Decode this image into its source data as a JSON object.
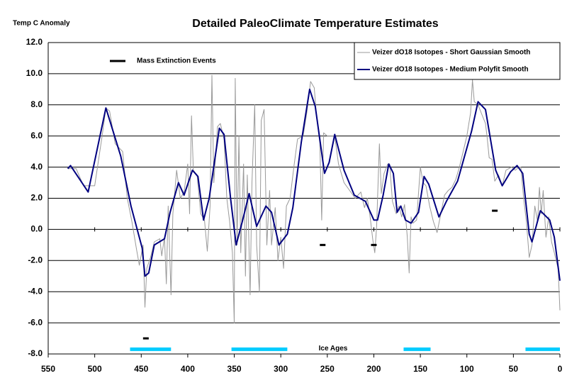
{
  "chart_data": {
    "type": "line",
    "title": "Detailed PaleoClimate Temperature Estimates",
    "y_label": "Temp C Anomaly",
    "xlim": [
      550,
      0
    ],
    "xticks": [
      550,
      500,
      450,
      400,
      350,
      300,
      250,
      200,
      150,
      100,
      50,
      0
    ],
    "ylim": [
      -8,
      12
    ],
    "yticks": [
      {
        "value": -8,
        "label": "-8.0"
      },
      {
        "value": -6,
        "label": "-6.0"
      },
      {
        "value": -4,
        "label": "-4.0"
      },
      {
        "value": -2,
        "label": "-2.0"
      },
      {
        "value": 0,
        "label": "0.0"
      },
      {
        "value": 2,
        "label": "2.0"
      },
      {
        "value": 4,
        "label": "4.0"
      },
      {
        "value": 6,
        "label": "6.0"
      },
      {
        "value": 8,
        "label": "8.0"
      },
      {
        "value": 10,
        "label": "10.0"
      },
      {
        "value": 12,
        "label": "12.0"
      }
    ],
    "grid": true,
    "legend": "upper right",
    "series": [
      {
        "name": "Veizer dO18 Isotopes - Short Gaussian Smooth",
        "color": "#999999",
        "style": "line",
        "width": 1,
        "x": [
          528,
          520,
          512,
          500,
          492,
          488,
          484,
          478,
          470,
          465,
          460,
          455,
          452,
          448,
          446,
          444,
          440,
          436,
          430,
          428,
          425,
          423,
          421,
          418,
          416,
          412,
          408,
          404,
          400,
          398,
          396,
          394,
          390,
          386,
          382,
          379,
          376,
          374,
          372,
          368,
          365,
          361,
          358,
          355,
          352,
          350,
          349,
          347,
          345,
          343,
          340,
          338,
          336,
          333,
          331,
          328,
          326,
          323,
          321,
          318,
          315,
          312,
          310,
          306,
          303,
          300,
          297,
          294,
          290,
          286,
          282,
          276,
          272,
          268,
          264,
          262,
          258,
          256,
          254,
          250,
          246,
          242,
          238,
          232,
          226,
          220,
          214,
          210,
          207,
          204,
          201,
          199,
          197,
          194,
          192,
          189,
          185,
          183,
          180,
          176,
          173,
          170,
          167,
          164,
          162,
          160,
          158,
          154,
          150,
          147,
          144,
          140,
          136,
          132,
          128,
          124,
          120,
          116,
          112,
          108,
          104,
          100,
          96,
          94,
          92,
          88,
          84,
          80,
          78,
          76,
          73,
          70,
          66,
          62,
          58,
          52,
          48,
          44,
          42,
          39,
          36,
          33,
          30,
          27,
          24,
          22,
          20,
          18,
          15,
          12,
          9,
          6,
          4,
          2,
          1,
          0
        ],
        "values": [
          3.9,
          3.9,
          2.8,
          2.8,
          6,
          7.8,
          7.6,
          5.5,
          5.0,
          2.0,
          0.5,
          -1.3,
          -2.3,
          -1.0,
          -5.0,
          -2.5,
          -1.8,
          -0.8,
          -0.6,
          -1.7,
          -0.5,
          -3.5,
          1.5,
          -4.2,
          1.0,
          3.8,
          2.0,
          2.4,
          4.2,
          1.0,
          7.3,
          3.8,
          3.5,
          1.0,
          0.6,
          -1.4,
          1.5,
          9.9,
          3.0,
          6.6,
          6.8,
          5.8,
          2.0,
          0.5,
          -1.5,
          -6.0,
          9.7,
          -1.0,
          6.0,
          -1.5,
          4.2,
          -3.0,
          3.5,
          -4.2,
          3.0,
          8.0,
          -1.0,
          -4.0,
          7.0,
          7.7,
          -1.0,
          2.5,
          -1.0,
          1.4,
          -2.0,
          -0.5,
          -2.5,
          1.5,
          2.0,
          4.0,
          5.8,
          6.0,
          7.5,
          9.5,
          9.1,
          7.5,
          5.5,
          0.6,
          6.2,
          6.0,
          6.0,
          6.0,
          4.2,
          3.0,
          2.5,
          2.0,
          2.4,
          1.4,
          2.0,
          0.8,
          -0.7,
          -1.5,
          0.2,
          5.5,
          2.3,
          3.6,
          4.2,
          4.2,
          1.8,
          1.0,
          1.5,
          0.8,
          1.6,
          -0.5,
          -2.8,
          0.8,
          0.4,
          0.6,
          4.0,
          3.0,
          2.8,
          1.5,
          0.5,
          -0.2,
          1.0,
          2.2,
          2.5,
          2.7,
          3.2,
          4.0,
          5.0,
          6.0,
          7.5,
          9.6,
          8.2,
          8.0,
          7.4,
          6.8,
          5.8,
          4.6,
          4.5,
          3.1,
          3.5,
          2.8,
          3.8,
          4.0,
          3.8,
          4.0,
          4.0,
          2.0,
          0.5,
          -1.8,
          -1.0,
          1.5,
          0.5,
          2.7,
          1.0,
          2.5,
          -0.5,
          0.8,
          -0.8,
          -1.5,
          -2.0,
          -2.5,
          -3.8,
          -5.2
        ]
      },
      {
        "name": "Veizer dO18 Isotopes - Medium Polyfit Smooth",
        "color": "#000080",
        "style": "line",
        "width": 2,
        "x": [
          529,
          526,
          507,
          488,
          472,
          461,
          449,
          446,
          442,
          436,
          425,
          419,
          410,
          404,
          395,
          389,
          383,
          377,
          366,
          361,
          354,
          348,
          341,
          334,
          326,
          316,
          310,
          302,
          293,
          287,
          278,
          269,
          263,
          253,
          248,
          242,
          232,
          221,
          209,
          200,
          196,
          190,
          184,
          179,
          175,
          171,
          166,
          160,
          152,
          146,
          141,
          130,
          122,
          110,
          95,
          88,
          80,
          69,
          62,
          53,
          46,
          40,
          33,
          30,
          21,
          11,
          6,
          0
        ],
        "values": [
          3.9,
          4.1,
          2.4,
          7.8,
          4.7,
          1.5,
          -1.2,
          -3.0,
          -2.8,
          -1.0,
          -0.6,
          1.1,
          3.0,
          2.2,
          3.8,
          3.4,
          0.6,
          2.0,
          6.5,
          6.1,
          2.0,
          -1.0,
          0.6,
          2.3,
          0.2,
          1.5,
          1.1,
          -1.0,
          -0.3,
          1.4,
          5.6,
          9.0,
          7.9,
          3.6,
          4.3,
          6.1,
          3.8,
          2.2,
          1.8,
          0.6,
          0.6,
          2.2,
          4.2,
          3.6,
          1.1,
          1.5,
          0.6,
          0.4,
          1.1,
          3.4,
          2.9,
          0.8,
          1.8,
          3.1,
          6.3,
          8.2,
          7.7,
          3.8,
          2.8,
          3.7,
          4.1,
          3.6,
          -0.3,
          -0.8,
          1.2,
          0.6,
          -0.5,
          -3.3
        ]
      },
      {
        "name": "Mass Extinction Events",
        "color": "#000000",
        "style": "dash",
        "x": [
          445,
          255,
          200,
          70
        ],
        "values": [
          -7,
          -1,
          -1,
          1.2
        ]
      }
    ],
    "ice_ages": {
      "label": "Ice Ages",
      "color": "#00ccff",
      "y": -7.7,
      "intervals": [
        [
          462,
          418
        ],
        [
          353,
          293
        ],
        [
          168,
          139
        ],
        [
          37,
          0
        ]
      ]
    }
  }
}
